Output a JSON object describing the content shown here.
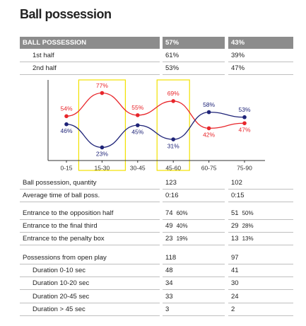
{
  "title": "Ball possession",
  "header": [
    "BALL POSSESSION",
    "57%",
    "43%"
  ],
  "halves": [
    [
      "1st half",
      "61%",
      "39%"
    ],
    [
      "2nd half",
      "53%",
      "47%"
    ]
  ],
  "chart_data": {
    "type": "line",
    "categories": [
      "0-15",
      "15-30",
      "30-45",
      "45-60",
      "60-75",
      "75-90"
    ],
    "ylim": [
      10,
      90
    ],
    "series": [
      {
        "color": "#e8262b",
        "values": [
          54,
          77,
          55,
          69,
          42,
          47
        ],
        "value_labels": [
          "54%",
          "77%",
          "55%",
          "69%",
          "42%",
          "47%"
        ]
      },
      {
        "color": "#1f2478",
        "values": [
          46,
          23,
          45,
          31,
          58,
          53
        ],
        "value_labels": [
          "46%",
          "23%",
          "45%",
          "31%",
          "58%",
          "53%"
        ]
      }
    ]
  },
  "groups": [
    [
      [
        "Ball possession, quantity",
        "123",
        "102"
      ],
      [
        "Average time of ball poss.",
        "0:16",
        "0:15"
      ]
    ],
    [
      [
        "Entrance to the opposition half",
        [
          "74",
          "60%"
        ],
        [
          "51",
          "50%"
        ]
      ],
      [
        "Entrance to the final third",
        [
          "49",
          "40%"
        ],
        [
          "29",
          "28%"
        ]
      ],
      [
        "Entrance to the penalty box",
        [
          "23",
          "19%"
        ],
        [
          "13",
          "13%"
        ]
      ]
    ],
    [
      [
        "Possessions from open play",
        "118",
        "97"
      ],
      [
        "Duration 0-10 sec",
        "48",
        "41"
      ],
      [
        "Duration 10-20 sec",
        "34",
        "30"
      ],
      [
        "Duration 20-45 sec",
        "33",
        "24"
      ],
      [
        "Duration > 45 sec",
        "3",
        "2"
      ]
    ]
  ]
}
